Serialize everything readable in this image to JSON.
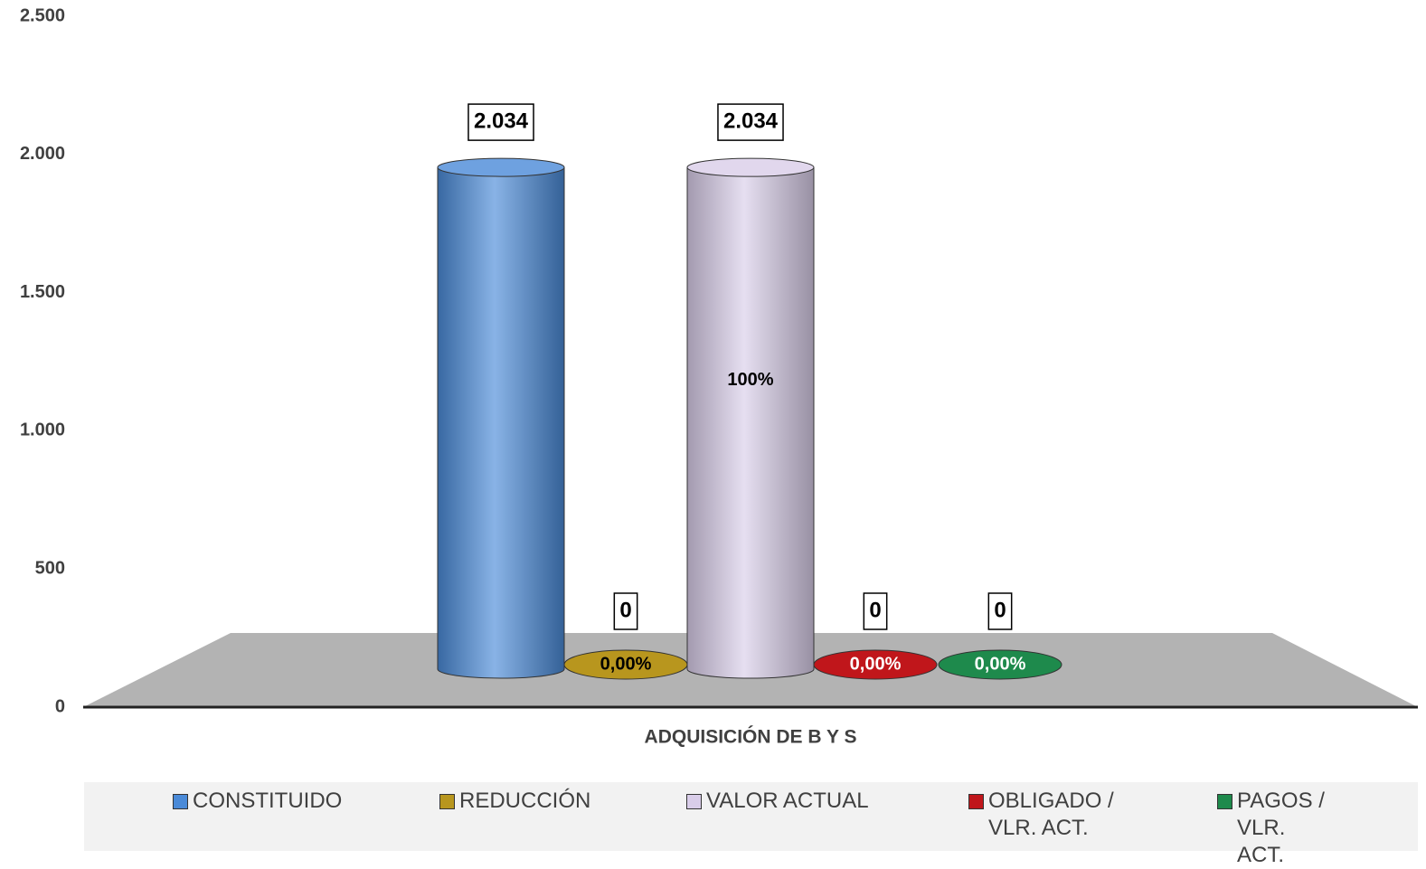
{
  "chart_data": {
    "type": "bar",
    "categories": [
      "ADQUISICIÓN DE B Y S"
    ],
    "series": [
      {
        "name": "CONSTITUIDO",
        "color": "#4a8ad8",
        "values": [
          2034
        ],
        "value_labels": [
          "2.034"
        ]
      },
      {
        "name": "REDUCCIÓN",
        "color": "#b8961e",
        "values": [
          0
        ],
        "shares": [
          0
        ],
        "share_labels": [
          "0,00%"
        ]
      },
      {
        "name": "VALOR ACTUAL",
        "color": "#d9cde9",
        "values": [
          2034
        ],
        "value_labels": [
          "2.034"
        ],
        "shares": [
          100
        ],
        "share_labels": [
          "100%"
        ]
      },
      {
        "name": "OBLIGADO / VLR. ACT.",
        "color": "#c0161b",
        "values": [
          0
        ],
        "shares": [
          0
        ],
        "share_labels": [
          "0,00%"
        ]
      },
      {
        "name": "PAGOS / VLR. ACT.",
        "color": "#1e8a4c",
        "values": [
          0
        ],
        "shares": [
          0
        ],
        "share_labels": [
          "0,00%"
        ]
      }
    ],
    "ylim": [
      0,
      2500
    ],
    "yticks": [
      0,
      500,
      {
        "value": 1000,
        "label": "1.000"
      },
      {
        "value": 1500,
        "label": "1.500"
      },
      {
        "value": 2000,
        "label": "2.000"
      },
      {
        "value": 2500,
        "label": "2.500"
      }
    ],
    "grid": false,
    "legend": "bottom"
  }
}
